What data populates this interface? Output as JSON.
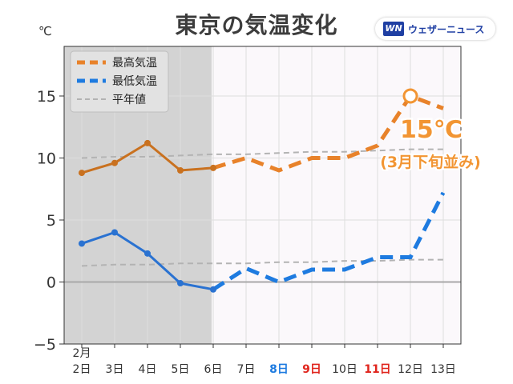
{
  "header": {
    "title": "東京の気温変化",
    "unit": "℃",
    "brand_logo": "WN",
    "brand_name": "ウェザーニュース"
  },
  "chart_data": {
    "type": "line",
    "title": "東京の気温変化",
    "ylabel": "℃",
    "ylim": [
      -5,
      19
    ],
    "yticks": [
      -5,
      0,
      5,
      10,
      15
    ],
    "grid": true,
    "legend_position": "top-left",
    "month_label": "2月",
    "categories": [
      "2日",
      "3日",
      "4日",
      "5日",
      "6日",
      "7日",
      "8日",
      "9日",
      "10日",
      "11日",
      "12日",
      "13日"
    ],
    "category_colors": [
      "#333333",
      "#333333",
      "#333333",
      "#333333",
      "#333333",
      "#333333",
      "#1e7be0",
      "#e0251d",
      "#333333",
      "#e0251d",
      "#333333",
      "#333333"
    ],
    "observed_through": "6日",
    "series": [
      {
        "name": "最高気温",
        "color": "#e8822a",
        "observed_color": "#c9711f",
        "values": [
          8.8,
          9.6,
          11.2,
          9.0,
          9.2,
          10.0,
          9.0,
          10.0,
          10.0,
          11.0,
          15.0,
          14.0
        ]
      },
      {
        "name": "最低気温",
        "color": "#1e7be0",
        "observed_color": "#2a72d1",
        "values": [
          3.1,
          4.0,
          2.3,
          -0.1,
          -0.6,
          1.1,
          0.0,
          1.0,
          1.0,
          2.0,
          2.0,
          7.2
        ]
      },
      {
        "name": "平年値",
        "color": "#b3b3b3",
        "values": [
          10.0,
          10.1,
          10.1,
          10.2,
          10.3,
          10.3,
          10.4,
          10.5,
          10.5,
          10.6,
          10.7,
          10.7
        ]
      },
      {
        "name": "平年値",
        "color": "#b3b3b3",
        "values": [
          1.3,
          1.4,
          1.4,
          1.5,
          1.5,
          1.5,
          1.6,
          1.6,
          1.7,
          1.7,
          1.8,
          1.8
        ]
      }
    ],
    "annotation": {
      "text": "15℃",
      "subtext": "(3月下旬並み)",
      "category": "12日",
      "value": 15.0,
      "color": "#f29533"
    }
  }
}
